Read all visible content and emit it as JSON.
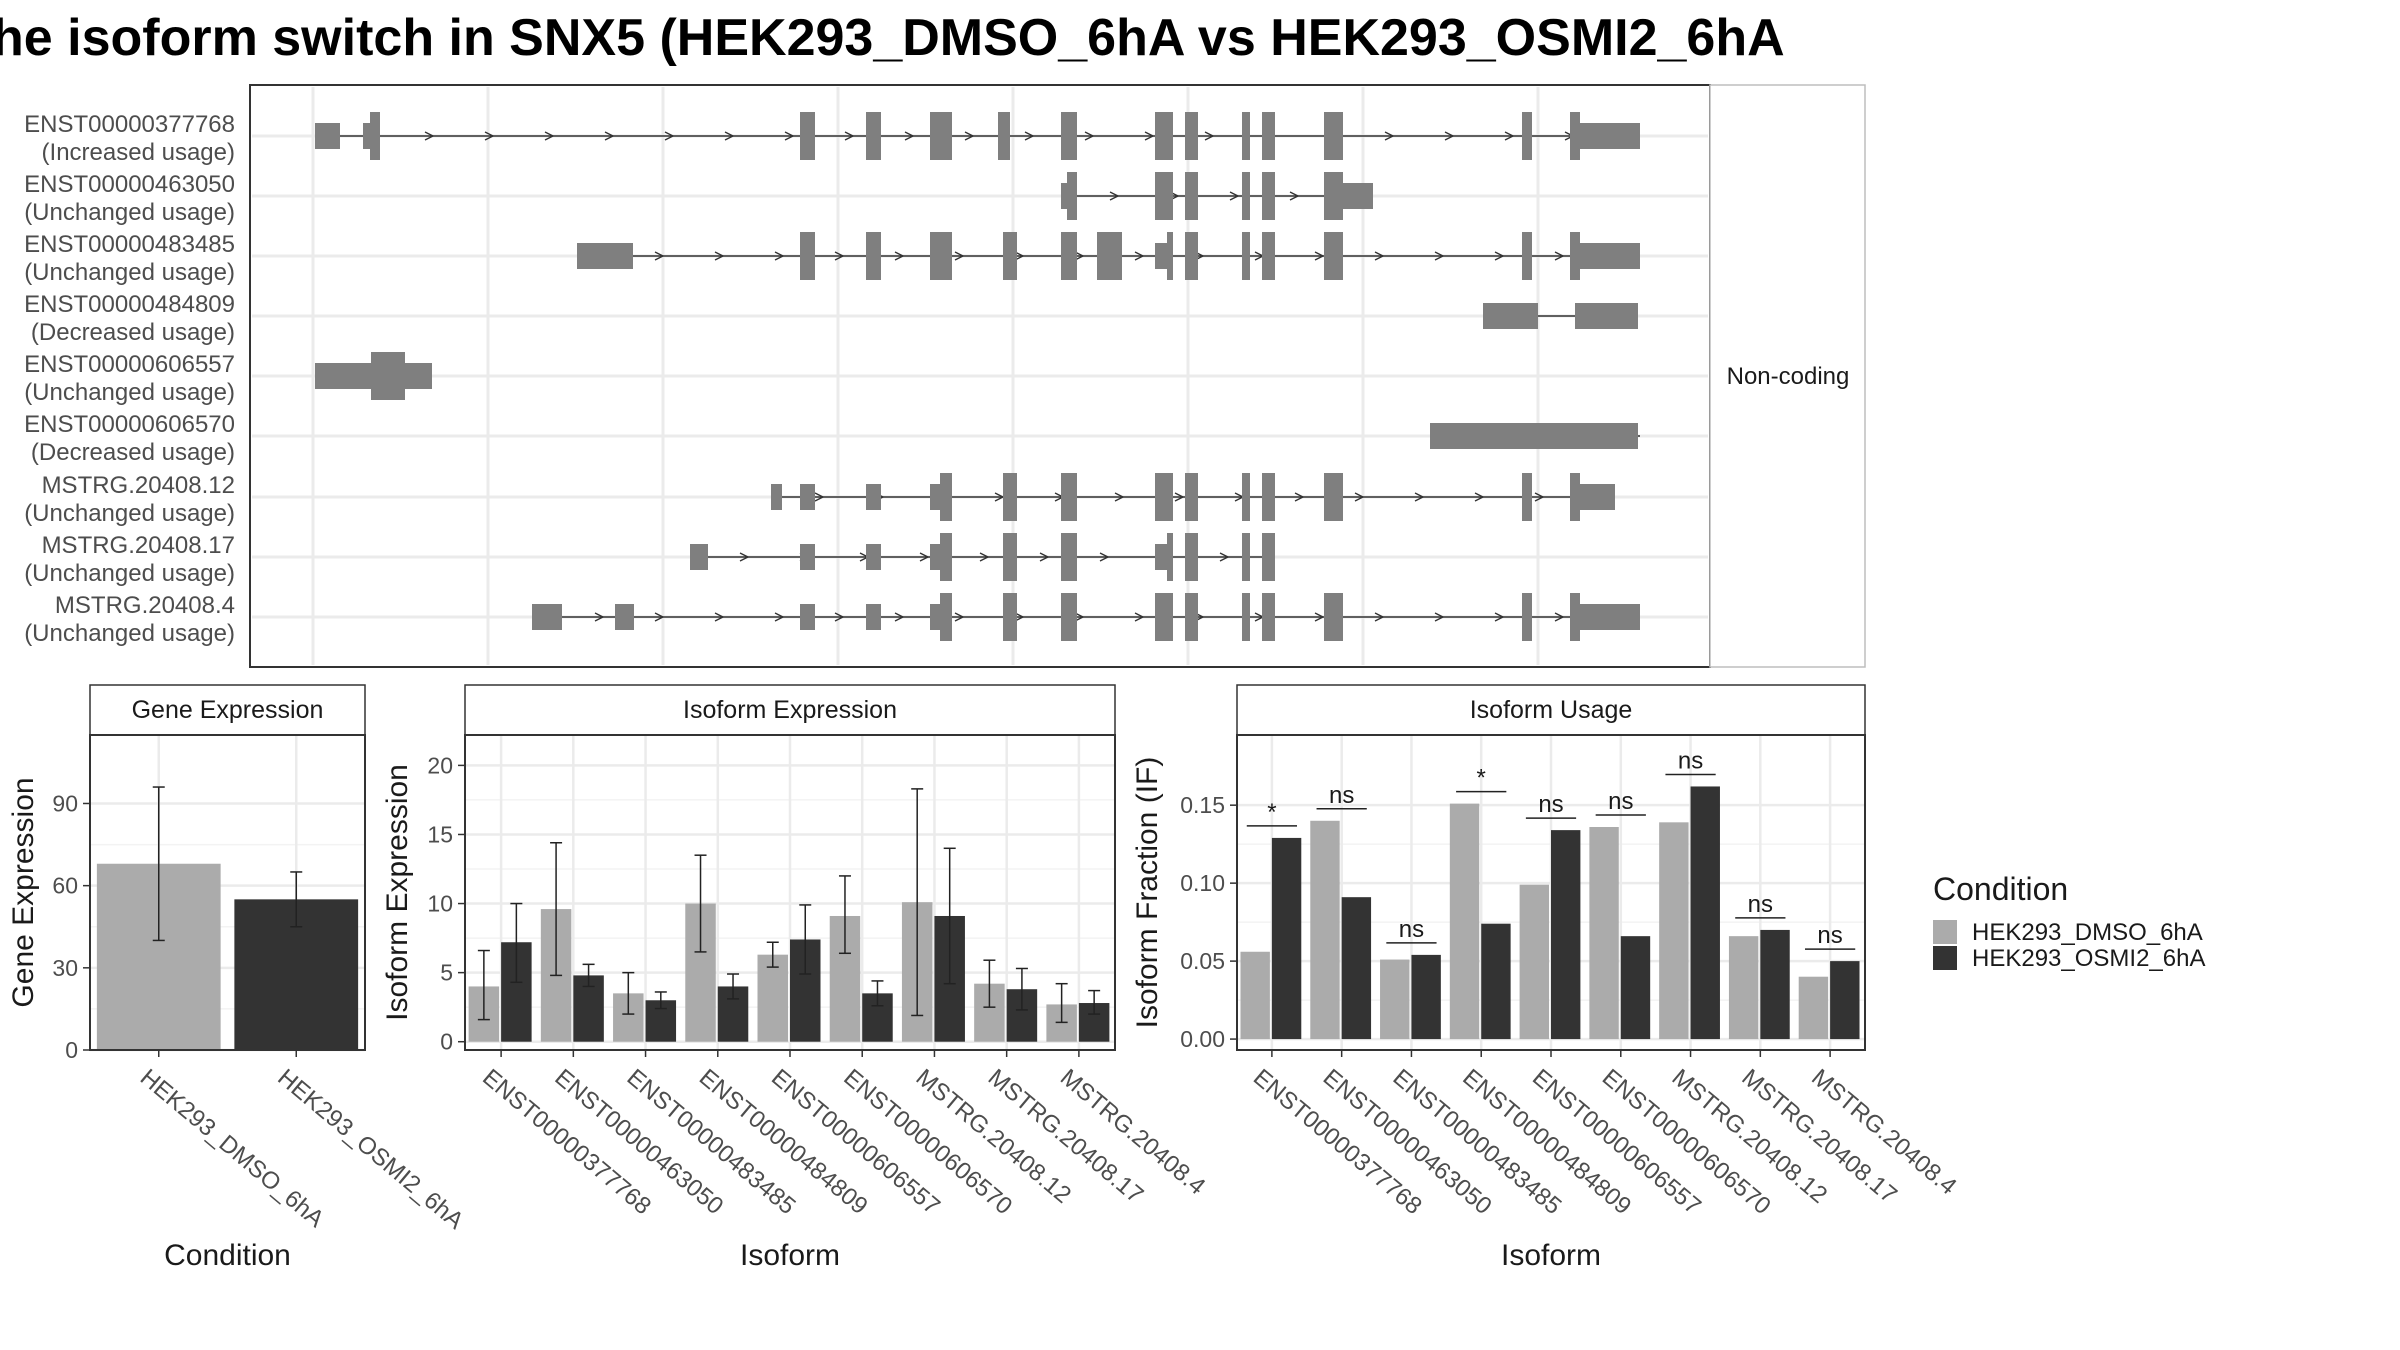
{
  "title": "he isoform switch in SNX5 (HEK293_DMSO_6hA vs HEK293_OSMI2_6hA",
  "colors": {
    "dmso": "#ABABAB",
    "osmi": "#333333",
    "transcript": "#7F7F7F",
    "panel_border": "#333333",
    "strip_fill": "#FFFFFF",
    "grid": "#EBEBEB"
  },
  "structure": {
    "facet_label": "Non-coding",
    "transcripts": [
      {
        "id": "ENST00000377768",
        "usage": "(Increased usage)"
      },
      {
        "id": "ENST00000463050",
        "usage": "(Unchanged usage)"
      },
      {
        "id": "ENST00000483485",
        "usage": "(Unchanged usage)"
      },
      {
        "id": "ENST00000484809",
        "usage": "(Decreased usage)"
      },
      {
        "id": "ENST00000606557",
        "usage": "(Unchanged usage)"
      },
      {
        "id": "ENST00000606570",
        "usage": "(Decreased usage)"
      },
      {
        "id": "MSTRG.20408.12",
        "usage": "(Unchanged usage)"
      },
      {
        "id": "MSTRG.20408.17",
        "usage": "(Unchanged usage)"
      },
      {
        "id": "MSTRG.20408.4",
        "usage": "(Unchanged usage)"
      }
    ]
  },
  "legend": {
    "title": "Condition",
    "items": [
      "HEK293_DMSO_6hA",
      "HEK293_OSMI2_6hA"
    ]
  },
  "chart_data": [
    {
      "type": "bar",
      "panel": "Gene Expression",
      "title": "Gene Expression",
      "xlabel": "Condition",
      "ylabel": "Gene Expression",
      "categories": [
        "HEK293_DMSO_6hA",
        "HEK293_OSMI2_6hA"
      ],
      "values": [
        68,
        55
      ],
      "error_low": [
        40,
        45
      ],
      "error_high": [
        96,
        65
      ],
      "ylim": [
        0,
        115
      ],
      "yticks": [
        0,
        30,
        60,
        90
      ]
    },
    {
      "type": "bar",
      "panel": "Isoform Expression",
      "title": "Isoform Expression",
      "xlabel": "Isoform",
      "ylabel": "Isoform Expression",
      "categories": [
        "ENST00000377768",
        "ENST00000463050",
        "ENST00000483485",
        "ENST00000484809",
        "ENST00000606557",
        "ENST00000606570",
        "MSTRG.20408.12",
        "MSTRG.20408.17",
        "MSTRG.20408.4"
      ],
      "series": [
        {
          "name": "HEK293_DMSO_6hA",
          "values": [
            4.0,
            9.6,
            3.5,
            10.0,
            6.3,
            9.1,
            10.1,
            4.2,
            2.7
          ],
          "error_low": [
            1.6,
            4.8,
            2.0,
            6.5,
            5.4,
            6.4,
            1.9,
            2.5,
            1.4
          ],
          "error_high": [
            6.6,
            14.4,
            5.0,
            13.5,
            7.2,
            12.0,
            18.3,
            5.9,
            4.2
          ]
        },
        {
          "name": "HEK293_OSMI2_6hA",
          "values": [
            7.2,
            4.8,
            3.0,
            4.0,
            7.4,
            3.5,
            9.1,
            3.8,
            2.8
          ],
          "error_low": [
            4.3,
            4.0,
            2.4,
            3.1,
            4.9,
            2.6,
            4.2,
            2.3,
            2.0
          ],
          "error_high": [
            10.0,
            5.6,
            3.6,
            4.9,
            9.9,
            4.4,
            14.0,
            5.3,
            3.7
          ]
        }
      ],
      "ylim": [
        -0.6,
        22.2
      ],
      "yticks": [
        0,
        5,
        10,
        15,
        20
      ]
    },
    {
      "type": "bar",
      "panel": "Isoform Usage",
      "title": "Isoform Usage",
      "xlabel": "Isoform",
      "ylabel": "Isoform Fraction (IF)",
      "categories": [
        "ENST00000377768",
        "ENST00000463050",
        "ENST00000483485",
        "ENST00000484809",
        "ENST00000606557",
        "ENST00000606570",
        "MSTRG.20408.12",
        "MSTRG.20408.17",
        "MSTRG.20408.4"
      ],
      "series": [
        {
          "name": "HEK293_DMSO_6hA",
          "values": [
            0.056,
            0.14,
            0.051,
            0.151,
            0.099,
            0.136,
            0.139,
            0.066,
            0.04
          ]
        },
        {
          "name": "HEK293_OSMI2_6hA",
          "values": [
            0.129,
            0.091,
            0.054,
            0.074,
            0.134,
            0.066,
            0.162,
            0.07,
            0.05
          ]
        }
      ],
      "significance": [
        "*",
        "ns",
        "ns",
        "*",
        "ns",
        "ns",
        "ns",
        "ns",
        "ns"
      ],
      "ylim": [
        -0.007,
        0.195
      ],
      "yticks": [
        "0.00",
        "0.05",
        "0.10",
        "0.15"
      ]
    }
  ]
}
